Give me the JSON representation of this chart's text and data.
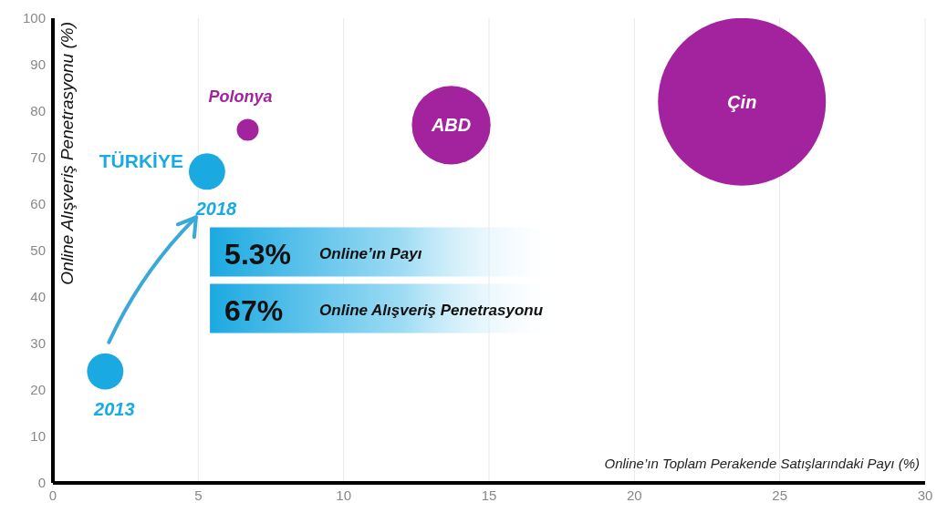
{
  "chart_data": {
    "type": "bubble",
    "xlabel": "Online’ın Toplam Perakende Satışlarındaki Payı (%)",
    "ylabel": "Online Alışveriş Penetrasyonu (%)",
    "xlim": [
      0,
      30
    ],
    "xticks": [
      0,
      5,
      10,
      15,
      20,
      25,
      30
    ],
    "ylim": [
      0,
      100
    ],
    "yticks": [
      0,
      10,
      20,
      30,
      40,
      50,
      60,
      70,
      80,
      90,
      100
    ],
    "grid": "x",
    "legend": false,
    "series": [
      {
        "name": "TÜRKİYE",
        "color": "#1ba9e1",
        "x": [
          1.8,
          5.3
        ],
        "values": [
          24,
          67
        ],
        "sizes": [
          0.047,
          0.047
        ]
      },
      {
        "name": "Polonya",
        "color": "#a3239e",
        "x": [
          6.7
        ],
        "values": [
          76
        ],
        "sizes": [
          0.017
        ]
      },
      {
        "name": "ABD",
        "color": "#a3239e",
        "x": [
          13.7
        ],
        "values": [
          77
        ],
        "sizes": [
          0.22
        ]
      },
      {
        "name": "Çin",
        "color": "#a3239e",
        "x": [
          23.7
        ],
        "values": [
          82
        ],
        "sizes": [
          1
        ]
      }
    ],
    "annotations": [
      {
        "text": "2013",
        "x": 1.8,
        "y": 24
      },
      {
        "text": "2018",
        "x": 5.3,
        "y": 67
      },
      "5.3%",
      "Online’ın Payı",
      "67%",
      "Online Alışveriş Penetrasyonu"
    ]
  }
}
